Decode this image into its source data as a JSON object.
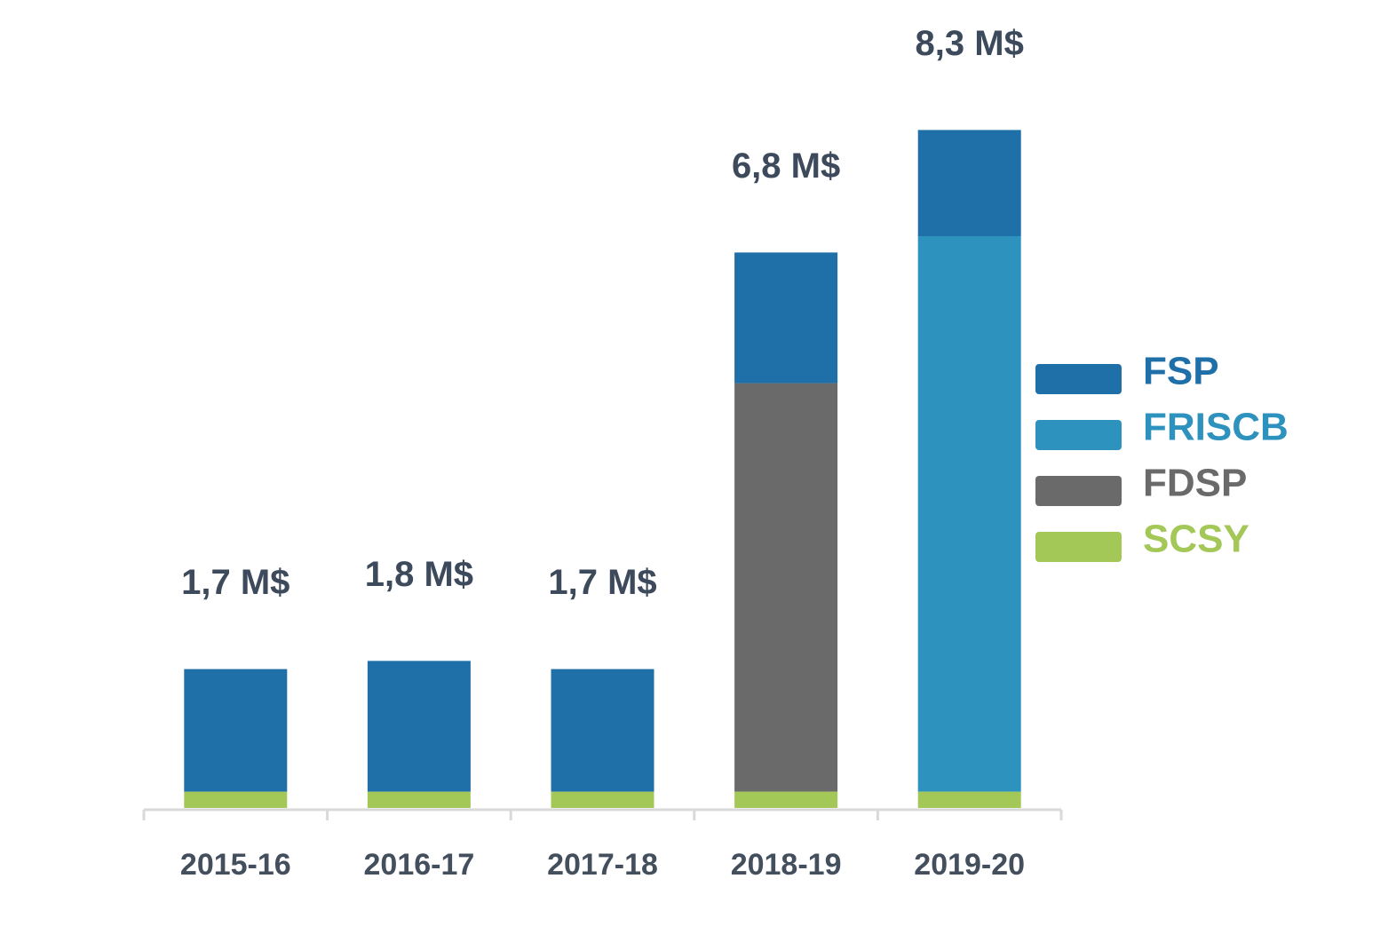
{
  "chart_data": {
    "type": "stacked_bar",
    "categories": [
      "2015-16",
      "2016-17",
      "2017-18",
      "2018-19",
      "2019-20"
    ],
    "series": [
      {
        "name": "FSP",
        "color": "#1f6fa8",
        "values": [
          1.5,
          1.6,
          1.5,
          1.6,
          1.3
        ]
      },
      {
        "name": "FRISCB",
        "color": "#2d92bd",
        "values": [
          0,
          0,
          0,
          0,
          6.8
        ]
      },
      {
        "name": "FDSP",
        "color": "#6a6a6a",
        "values": [
          0,
          0,
          0,
          5.0,
          0
        ]
      },
      {
        "name": "SCSY",
        "color": "#a3c857",
        "values": [
          0.2,
          0.2,
          0.2,
          0.2,
          0.2
        ]
      }
    ],
    "totals": {
      "values": [
        1.7,
        1.8,
        1.7,
        6.8,
        8.3
      ],
      "value_labels": [
        "1,7 M$",
        "1,8 M$",
        "1,7 M$",
        "6,8 M$",
        "8,3 M$"
      ]
    },
    "legend": "right"
  }
}
